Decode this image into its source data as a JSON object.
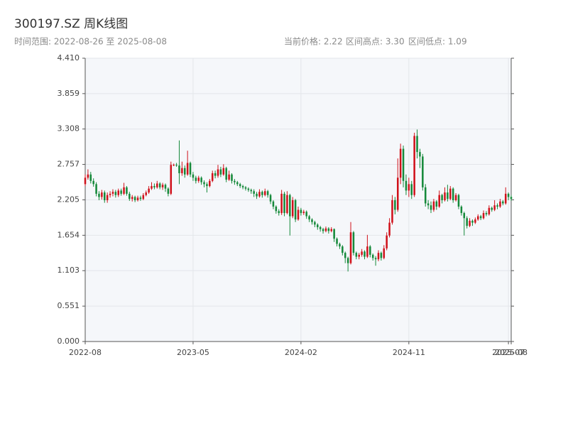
{
  "chart_data": {
    "type": "candlestick",
    "title": "300197.SZ 周K线图",
    "subtitle": "时间范围: 2022-08-26 至 2025-08-08",
    "stats": [
      "当前价格: 2.22",
      "区间高点: 3.30",
      "区间低点: 1.09"
    ],
    "up_color": "#d0121b",
    "down_color": "#15893a",
    "grid": true,
    "ylim": [
      0,
      4.41
    ],
    "yticks": [
      {
        "value": 0,
        "label": "0.000"
      },
      {
        "value": 0.551,
        "label": "0.551"
      },
      {
        "value": 1.103,
        "label": "1.103"
      },
      {
        "value": 1.654,
        "label": "1.654"
      },
      {
        "value": 2.205,
        "label": "2.205"
      },
      {
        "value": 2.757,
        "label": "2.757"
      },
      {
        "value": 3.308,
        "label": "3.308"
      },
      {
        "value": 3.859,
        "label": "3.859"
      },
      {
        "value": 4.41,
        "label": "4.410"
      }
    ],
    "categories": [
      "2022-08",
      null,
      null,
      null,
      null,
      null,
      null,
      null,
      null,
      null,
      null,
      null,
      null,
      null,
      null,
      null,
      null,
      null,
      null,
      null,
      null,
      null,
      null,
      null,
      null,
      null,
      null,
      null,
      null,
      null,
      null,
      null,
      null,
      null,
      null,
      null,
      null,
      null,
      null,
      "2023-05",
      null,
      null,
      null,
      null,
      null,
      null,
      null,
      null,
      null,
      null,
      null,
      null,
      null,
      null,
      null,
      null,
      null,
      null,
      null,
      null,
      null,
      null,
      null,
      null,
      null,
      null,
      null,
      null,
      null,
      null,
      null,
      null,
      null,
      null,
      null,
      null,
      null,
      null,
      "2024-02",
      null,
      null,
      null,
      null,
      null,
      null,
      null,
      null,
      null,
      null,
      null,
      null,
      null,
      null,
      null,
      null,
      null,
      null,
      null,
      null,
      null,
      null,
      null,
      null,
      null,
      null,
      null,
      null,
      null,
      null,
      null,
      null,
      null,
      null,
      null,
      null,
      null,
      null,
      "2024-11",
      null,
      null,
      null,
      null,
      null,
      null,
      null,
      null,
      null,
      null,
      null,
      null,
      null,
      null,
      null,
      null,
      null,
      null,
      null,
      null,
      null,
      null,
      null,
      null,
      null,
      null,
      null,
      null,
      null,
      null,
      null,
      null,
      null,
      null,
      null,
      "2025-07",
      "2025-08"
    ],
    "open": [
      2.45,
      2.55,
      2.6,
      2.5,
      2.45,
      2.3,
      2.25,
      2.32,
      2.2,
      2.28,
      2.3,
      2.33,
      2.28,
      2.35,
      2.3,
      2.4,
      2.3,
      2.22,
      2.25,
      2.2,
      2.24,
      2.22,
      2.28,
      2.32,
      2.38,
      2.42,
      2.4,
      2.46,
      2.4,
      2.44,
      2.38,
      2.3,
      2.75,
      2.75,
      2.74,
      2.62,
      2.7,
      2.6,
      2.78,
      2.6,
      2.55,
      2.5,
      2.55,
      2.48,
      2.45,
      2.42,
      2.5,
      2.62,
      2.58,
      2.68,
      2.6,
      2.7,
      2.52,
      2.6,
      2.5,
      2.48,
      2.45,
      2.42,
      2.4,
      2.38,
      2.36,
      2.34,
      2.3,
      2.26,
      2.33,
      2.28,
      2.34,
      2.28,
      2.18,
      2.1,
      2.03,
      2.0,
      2.3,
      2.0,
      2.28,
      1.95,
      2.2,
      1.9,
      2.05,
      2.0,
      2.02,
      1.95,
      1.9,
      1.86,
      1.82,
      1.78,
      1.75,
      1.72,
      1.76,
      1.72,
      1.75,
      1.6,
      1.52,
      1.48,
      1.38,
      1.3,
      1.22,
      1.7,
      1.38,
      1.32,
      1.35,
      1.4,
      1.32,
      1.48,
      1.35,
      1.3,
      1.28,
      1.38,
      1.3,
      1.45,
      1.65,
      1.85,
      2.2,
      2.05,
      2.55,
      3.0,
      2.5,
      2.35,
      2.45,
      2.28,
      3.2,
      2.95,
      2.88,
      2.4,
      2.15,
      2.12,
      2.05,
      2.18,
      2.1,
      2.28,
      2.2,
      2.32,
      2.22,
      2.38,
      2.2,
      2.28,
      2.1,
      2.0,
      1.92,
      1.8,
      1.88,
      1.85,
      1.9,
      1.95,
      1.92,
      2.0,
      1.98,
      2.08,
      2.05,
      2.12,
      2.1,
      2.18,
      2.15,
      2.3,
      2.25
    ],
    "high": [
      2.6,
      2.68,
      2.64,
      2.54,
      2.48,
      2.34,
      2.36,
      2.35,
      2.32,
      2.34,
      2.37,
      2.36,
      2.38,
      2.38,
      2.47,
      2.42,
      2.33,
      2.28,
      2.27,
      2.27,
      2.27,
      2.31,
      2.35,
      2.42,
      2.48,
      2.46,
      2.5,
      2.48,
      2.47,
      2.46,
      2.4,
      2.8,
      2.77,
      2.78,
      3.13,
      2.8,
      2.74,
      2.97,
      2.8,
      2.64,
      2.58,
      2.58,
      2.57,
      2.51,
      2.48,
      2.53,
      2.66,
      2.66,
      2.75,
      2.72,
      2.76,
      2.72,
      2.66,
      2.62,
      2.53,
      2.5,
      2.47,
      2.44,
      2.42,
      2.4,
      2.38,
      2.37,
      2.33,
      2.37,
      2.35,
      2.38,
      2.36,
      2.3,
      2.2,
      2.12,
      2.06,
      2.36,
      2.33,
      2.34,
      2.3,
      2.25,
      2.22,
      2.1,
      2.08,
      2.05,
      2.04,
      1.97,
      1.92,
      1.88,
      1.84,
      1.8,
      1.77,
      1.79,
      1.78,
      1.78,
      1.76,
      1.62,
      1.54,
      1.5,
      1.4,
      1.32,
      1.86,
      1.72,
      1.4,
      1.38,
      1.44,
      1.42,
      1.66,
      1.5,
      1.37,
      1.33,
      1.42,
      1.4,
      1.5,
      1.7,
      1.92,
      2.28,
      2.25,
      2.85,
      3.08,
      3.05,
      2.6,
      2.55,
      2.5,
      3.25,
      3.3,
      3.0,
      2.92,
      2.45,
      2.2,
      2.18,
      2.22,
      2.2,
      2.35,
      2.3,
      2.4,
      2.44,
      2.42,
      2.4,
      2.31,
      2.3,
      2.12,
      2.02,
      1.95,
      1.92,
      1.9,
      1.93,
      1.98,
      1.97,
      2.04,
      2.03,
      2.12,
      2.1,
      2.2,
      2.15,
      2.22,
      2.2,
      2.4,
      2.32,
      2.28
    ],
    "low": [
      2.42,
      2.52,
      2.46,
      2.41,
      2.26,
      2.2,
      2.21,
      2.16,
      2.16,
      2.24,
      2.26,
      2.24,
      2.25,
      2.27,
      2.28,
      2.27,
      2.19,
      2.18,
      2.17,
      2.18,
      2.19,
      2.2,
      2.26,
      2.3,
      2.36,
      2.37,
      2.38,
      2.37,
      2.36,
      2.33,
      2.26,
      2.28,
      2.73,
      2.72,
      2.45,
      2.58,
      2.55,
      2.58,
      2.56,
      2.5,
      2.46,
      2.47,
      2.44,
      2.4,
      2.32,
      2.4,
      2.48,
      2.54,
      2.55,
      2.56,
      2.58,
      2.48,
      2.5,
      2.46,
      2.44,
      2.42,
      2.39,
      2.37,
      2.35,
      2.33,
      2.3,
      2.25,
      2.22,
      2.24,
      2.24,
      2.26,
      2.24,
      2.14,
      2.06,
      1.99,
      1.96,
      1.97,
      1.95,
      1.98,
      1.65,
      1.92,
      1.86,
      1.88,
      1.96,
      1.97,
      1.91,
      1.86,
      1.82,
      1.78,
      1.74,
      1.71,
      1.68,
      1.7,
      1.68,
      1.7,
      1.55,
      1.48,
      1.44,
      1.34,
      1.22,
      1.09,
      1.2,
      1.34,
      1.28,
      1.28,
      1.32,
      1.28,
      1.3,
      1.31,
      1.26,
      1.18,
      1.25,
      1.26,
      1.28,
      1.42,
      1.62,
      1.82,
      1.98,
      2.02,
      2.45,
      2.4,
      2.28,
      2.25,
      2.22,
      2.25,
      2.85,
      2.7,
      2.35,
      2.1,
      2.06,
      2.0,
      2.02,
      2.05,
      2.08,
      2.15,
      2.18,
      2.18,
      2.2,
      2.16,
      2.18,
      2.06,
      1.96,
      1.65,
      1.76,
      1.78,
      1.8,
      1.83,
      1.88,
      1.89,
      1.9,
      1.95,
      1.96,
      2.02,
      2.03,
      2.06,
      2.08,
      2.12,
      2.13,
      2.2,
      2.19
    ],
    "close": [
      2.55,
      2.6,
      2.5,
      2.45,
      2.3,
      2.25,
      2.32,
      2.2,
      2.28,
      2.3,
      2.33,
      2.28,
      2.35,
      2.3,
      2.4,
      2.3,
      2.22,
      2.25,
      2.2,
      2.24,
      2.22,
      2.28,
      2.32,
      2.38,
      2.42,
      2.4,
      2.46,
      2.4,
      2.44,
      2.38,
      2.3,
      2.75,
      2.75,
      2.74,
      2.62,
      2.7,
      2.6,
      2.78,
      2.6,
      2.55,
      2.5,
      2.55,
      2.48,
      2.45,
      2.42,
      2.5,
      2.62,
      2.58,
      2.68,
      2.6,
      2.7,
      2.52,
      2.6,
      2.5,
      2.48,
      2.45,
      2.42,
      2.4,
      2.38,
      2.36,
      2.34,
      2.3,
      2.26,
      2.33,
      2.28,
      2.34,
      2.28,
      2.18,
      2.1,
      2.03,
      2.0,
      2.3,
      2.0,
      2.28,
      1.95,
      2.2,
      1.9,
      2.05,
      2.0,
      2.02,
      1.95,
      1.9,
      1.86,
      1.82,
      1.78,
      1.75,
      1.72,
      1.76,
      1.72,
      1.75,
      1.6,
      1.52,
      1.48,
      1.38,
      1.3,
      1.22,
      1.7,
      1.38,
      1.32,
      1.35,
      1.4,
      1.32,
      1.48,
      1.35,
      1.3,
      1.28,
      1.38,
      1.3,
      1.45,
      1.65,
      1.85,
      2.2,
      2.05,
      2.55,
      3.0,
      2.5,
      2.35,
      2.45,
      2.28,
      3.2,
      2.95,
      2.88,
      2.4,
      2.15,
      2.12,
      2.05,
      2.18,
      2.1,
      2.28,
      2.2,
      2.32,
      2.22,
      2.38,
      2.2,
      2.28,
      2.1,
      2.0,
      1.92,
      1.8,
      1.88,
      1.85,
      1.9,
      1.95,
      1.92,
      2.0,
      1.98,
      2.08,
      2.05,
      2.12,
      2.1,
      2.18,
      2.15,
      2.3,
      2.25,
      2.22
    ]
  }
}
